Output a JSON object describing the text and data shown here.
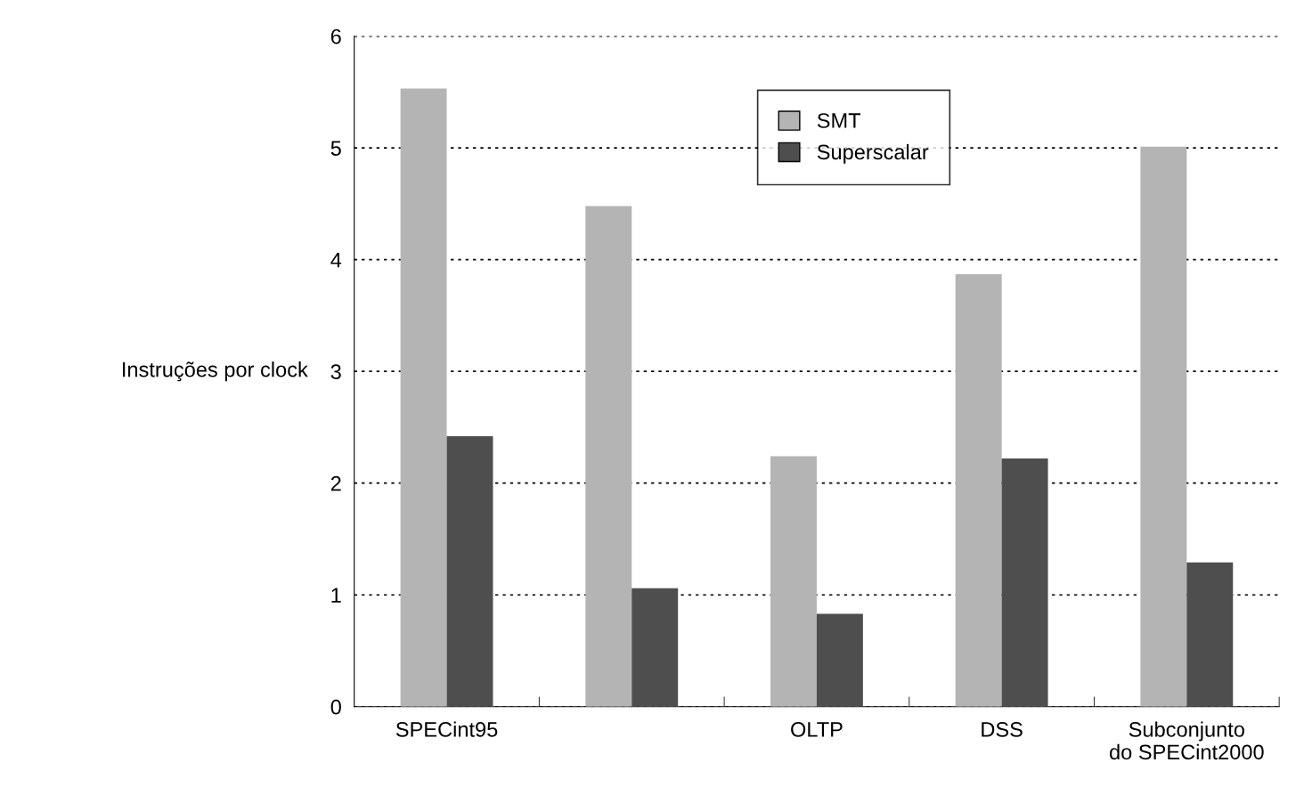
{
  "chart_data": {
    "type": "bar",
    "ylabel": "Instruções por clock",
    "categories": [
      "SPECint95",
      null,
      "OLTP",
      "DSS",
      "Subconjunto\ndo SPECint2000"
    ],
    "series": [
      {
        "name": "SMT",
        "color": "#b4b4b4",
        "values": [
          5.53,
          4.48,
          2.24,
          3.87,
          5.01
        ]
      },
      {
        "name": "Superscalar",
        "color": "#4e4e4e",
        "values": [
          2.42,
          1.06,
          0.83,
          2.22,
          1.29
        ]
      }
    ],
    "ylim": [
      0,
      6
    ],
    "yticks": [
      0,
      1,
      2,
      3,
      4,
      5,
      6
    ],
    "grid": "y",
    "legend": "top"
  }
}
